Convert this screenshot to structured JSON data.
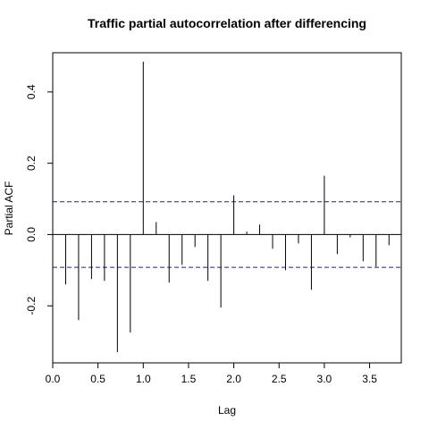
{
  "chart_data": {
    "type": "bar",
    "title": "Traffic partial autocorrelation after differencing",
    "xlabel": "Lag",
    "ylabel": "Partial ACF",
    "xlim": [
      0,
      3.85
    ],
    "ylim": [
      -0.36,
      0.51
    ],
    "x_ticks": [
      0.0,
      0.5,
      1.0,
      1.5,
      2.0,
      2.5,
      3.0,
      3.5
    ],
    "x_tick_labels": [
      "0.0",
      "0.5",
      "1.0",
      "1.5",
      "2.0",
      "2.5",
      "3.0",
      "3.5"
    ],
    "y_ticks": [
      -0.2,
      0.0,
      0.2,
      0.4
    ],
    "y_tick_labels": [
      "-0.2",
      "0.0",
      "0.2",
      "0.4"
    ],
    "confidence_band": 0.092,
    "series": [
      {
        "x": [
          0.1429,
          0.2857,
          0.4286,
          0.5714,
          0.7143,
          0.8571,
          1.0,
          1.1429,
          1.2857,
          1.4286,
          1.5714,
          1.7143,
          1.8571,
          2.0,
          2.1429,
          2.2857,
          2.4286,
          2.5714,
          2.7143,
          2.8571,
          3.0,
          3.1429,
          3.2857,
          3.4286,
          3.5714,
          3.7143
        ],
        "values": [
          -0.14,
          -0.24,
          -0.125,
          -0.13,
          -0.33,
          -0.275,
          0.485,
          0.035,
          -0.135,
          -0.085,
          -0.035,
          -0.13,
          -0.205,
          0.11,
          0.008,
          0.028,
          -0.04,
          -0.1,
          -0.025,
          -0.155,
          0.165,
          -0.055,
          -0.008,
          -0.075,
          -0.09,
          -0.03
        ]
      }
    ],
    "grid": false,
    "colors": {
      "bars": "#000000",
      "band": "#1a1aa6",
      "axis": "#000000"
    }
  }
}
